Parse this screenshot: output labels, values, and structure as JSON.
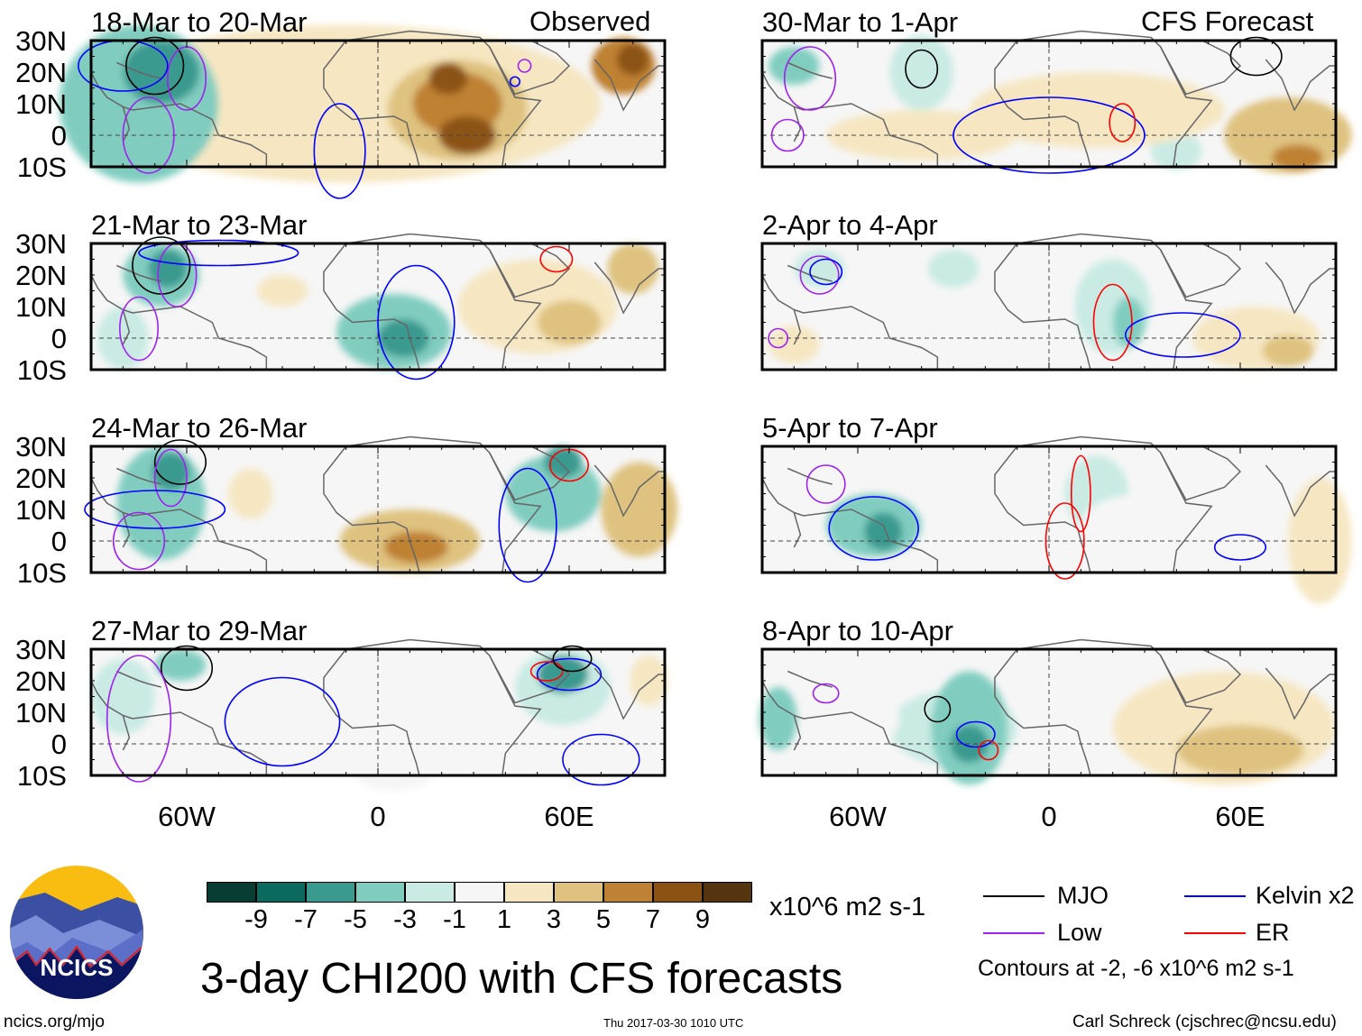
{
  "colors": [
    "#073d33",
    "#0b6a5d",
    "#3a9a90",
    "#80cdc0",
    "#c9ebe4",
    "#f6f6f6",
    "#f6e7c2",
    "#dfc27f",
    "#bf8133",
    "#8c5213",
    "#553410"
  ],
  "levels": [
    -9,
    -7,
    -5,
    -3,
    -1,
    1,
    3,
    5,
    7,
    9
  ],
  "contour_colors": {
    "MJO": "#000000",
    "Kelvin": "#0000ff",
    "Low": "#a020f0",
    "ER": "#ff0000"
  },
  "header": {
    "observed": "Observed",
    "forecast": "CFS Forecast"
  },
  "lat_labels": [
    "30N",
    "20N",
    "10N",
    "0",
    "10S"
  ],
  "lon_labels": [
    "60W",
    "0",
    "60E"
  ],
  "panels": [
    {
      "title": "18-Mar to 20-Mar",
      "shading": [
        [
          -10,
          10,
          80,
          25,
          3
        ],
        [
          -75,
          10,
          25,
          25,
          -3
        ],
        [
          -68,
          20,
          12,
          10,
          -5
        ],
        [
          25,
          8,
          22,
          16,
          5
        ],
        [
          25,
          10,
          14,
          10,
          7
        ],
        [
          28,
          0,
          9,
          6,
          9
        ],
        [
          22,
          18,
          6,
          5,
          9
        ],
        [
          77,
          22,
          10,
          9,
          7
        ],
        [
          80,
          24,
          5,
          5,
          9
        ],
        [
          -55,
          15,
          8,
          6,
          1
        ]
      ],
      "contours": [
        [
          "MJO",
          -70,
          22,
          9,
          9
        ],
        [
          "Low",
          -60,
          18,
          6,
          10
        ],
        [
          "Low",
          -72,
          0,
          8,
          12
        ],
        [
          "Kelvin",
          -12,
          -5,
          8,
          15
        ],
        [
          "Kelvin",
          -80,
          22,
          14,
          8
        ],
        [
          "Low",
          46,
          22,
          2,
          2
        ],
        [
          "Kelvin",
          43,
          17,
          1.5,
          1.5
        ]
      ]
    },
    {
      "title": "21-Mar to 23-Mar",
      "shading": [
        [
          -68,
          20,
          12,
          10,
          -3
        ],
        [
          -66,
          22,
          6,
          6,
          -5
        ],
        [
          5,
          2,
          18,
          12,
          -3
        ],
        [
          8,
          0,
          8,
          6,
          -5
        ],
        [
          50,
          10,
          25,
          15,
          3
        ],
        [
          60,
          5,
          10,
          7,
          5
        ],
        [
          -30,
          15,
          8,
          5,
          3
        ],
        [
          80,
          22,
          8,
          8,
          5
        ],
        [
          -80,
          0,
          8,
          10,
          -1
        ]
      ],
      "contours": [
        [
          "MJO",
          -68,
          23,
          9,
          9
        ],
        [
          "Low",
          -63,
          20,
          6,
          10
        ],
        [
          "Low",
          -75,
          3,
          6,
          10
        ],
        [
          "Kelvin",
          12,
          5,
          12,
          18
        ],
        [
          "Kelvin",
          -50,
          27,
          25,
          4
        ],
        [
          "ER",
          56,
          25,
          5,
          4
        ]
      ]
    },
    {
      "title": "24-Mar to 26-Mar",
      "shading": [
        [
          -68,
          12,
          14,
          18,
          -3
        ],
        [
          -65,
          22,
          6,
          6,
          -5
        ],
        [
          10,
          0,
          22,
          10,
          5
        ],
        [
          12,
          -2,
          10,
          5,
          7
        ],
        [
          55,
          15,
          15,
          12,
          -3
        ],
        [
          58,
          25,
          6,
          5,
          -5
        ],
        [
          82,
          10,
          12,
          15,
          5
        ],
        [
          -40,
          15,
          7,
          8,
          3
        ]
      ],
      "contours": [
        [
          "MJO",
          -62,
          25,
          8,
          7
        ],
        [
          "Low",
          -65,
          20,
          5,
          9
        ],
        [
          "Low",
          -75,
          0,
          8,
          9
        ],
        [
          "Kelvin",
          -70,
          10,
          22,
          6
        ],
        [
          "Kelvin",
          47,
          5,
          9,
          18
        ],
        [
          "ER",
          60,
          24,
          6,
          5
        ]
      ]
    },
    {
      "title": "27-Mar to 29-Mar",
      "shading": [
        [
          -62,
          25,
          8,
          5,
          -3
        ],
        [
          58,
          18,
          15,
          12,
          -1
        ],
        [
          58,
          22,
          8,
          6,
          -5
        ],
        [
          5,
          -5,
          15,
          10,
          1
        ],
        [
          85,
          20,
          6,
          8,
          3
        ],
        [
          -80,
          15,
          10,
          12,
          -1
        ]
      ],
      "contours": [
        [
          "MJO",
          -60,
          24,
          8,
          7
        ],
        [
          "Low",
          -75,
          8,
          10,
          20
        ],
        [
          "Kelvin",
          -30,
          7,
          18,
          14
        ],
        [
          "Kelvin",
          60,
          22,
          10,
          5
        ],
        [
          "ER",
          53,
          23,
          5,
          3
        ],
        [
          "Kelvin",
          70,
          -5,
          12,
          8
        ],
        [
          "MJO",
          61,
          27,
          6,
          4
        ]
      ]
    },
    {
      "title": "30-Mar to 1-Apr",
      "shading": [
        [
          -40,
          20,
          10,
          12,
          -1
        ],
        [
          15,
          8,
          40,
          12,
          3
        ],
        [
          -40,
          0,
          30,
          8,
          3
        ],
        [
          75,
          0,
          20,
          12,
          5
        ],
        [
          78,
          -7,
          8,
          4,
          7
        ],
        [
          -80,
          22,
          8,
          6,
          -3
        ],
        [
          40,
          -5,
          8,
          6,
          -1
        ]
      ],
      "contours": [
        [
          "MJO",
          -40,
          21,
          5,
          6
        ],
        [
          "Low",
          -75,
          18,
          8,
          10
        ],
        [
          "Low",
          -82,
          0,
          5,
          5
        ],
        [
          "Kelvin",
          0,
          0,
          30,
          12
        ],
        [
          "ER",
          23,
          4,
          4,
          6
        ],
        [
          "MJO",
          65,
          25,
          8,
          6
        ]
      ]
    },
    {
      "title": "2-Apr to 4-Apr",
      "shading": [
        [
          20,
          10,
          12,
          15,
          -1
        ],
        [
          25,
          5,
          5,
          8,
          -3
        ],
        [
          -72,
          22,
          8,
          6,
          -1
        ],
        [
          65,
          0,
          20,
          10,
          3
        ],
        [
          75,
          -4,
          8,
          5,
          5
        ],
        [
          -30,
          22,
          8,
          6,
          -1
        ],
        [
          -80,
          -2,
          8,
          6,
          3
        ]
      ],
      "contours": [
        [
          "Low",
          -72,
          20,
          6,
          6
        ],
        [
          "Kelvin",
          -70,
          21,
          5,
          4
        ],
        [
          "Low",
          -85,
          0,
          3,
          3
        ],
        [
          "ER",
          20,
          5,
          6,
          12
        ],
        [
          "Kelvin",
          42,
          1,
          18,
          7
        ]
      ]
    },
    {
      "title": "5-Apr to 7-Apr",
      "shading": [
        [
          -55,
          5,
          15,
          10,
          -3
        ],
        [
          -52,
          3,
          6,
          6,
          -5
        ],
        [
          15,
          15,
          10,
          12,
          -1
        ],
        [
          30,
          5,
          20,
          10,
          1
        ],
        [
          85,
          0,
          10,
          20,
          3
        ],
        [
          -80,
          15,
          8,
          10,
          1
        ]
      ],
      "contours": [
        [
          "Low",
          -70,
          18,
          6,
          6
        ],
        [
          "Kelvin",
          -55,
          4,
          14,
          10
        ],
        [
          "ER",
          5,
          0,
          6,
          12
        ],
        [
          "ER",
          10,
          15,
          3,
          12
        ],
        [
          "Kelvin",
          60,
          -2,
          8,
          4
        ]
      ]
    },
    {
      "title": "8-Apr to 10-Apr",
      "shading": [
        [
          -25,
          5,
          12,
          18,
          -3
        ],
        [
          -25,
          0,
          6,
          6,
          -5
        ],
        [
          -85,
          8,
          6,
          10,
          -3
        ],
        [
          55,
          5,
          35,
          18,
          3
        ],
        [
          60,
          -2,
          20,
          8,
          5
        ],
        [
          -30,
          5,
          20,
          12,
          -1
        ],
        [
          -55,
          8,
          8,
          8,
          1
        ],
        [
          25,
          0,
          10,
          8,
          1
        ]
      ],
      "contours": [
        [
          "MJO",
          -35,
          11,
          4,
          4
        ],
        [
          "Low",
          -70,
          16,
          4,
          3
        ],
        [
          "Kelvin",
          -23,
          3,
          6,
          4
        ],
        [
          "ER",
          -19,
          -2,
          3,
          3
        ]
      ]
    }
  ],
  "colorbar": {
    "unit": "x10^6 m2 s-1"
  },
  "legend": {
    "items": [
      {
        "key": "MJO",
        "label": "MJO"
      },
      {
        "key": "Kelvin",
        "label": "Kelvin x2"
      },
      {
        "key": "Low",
        "label": "Low"
      },
      {
        "key": "ER",
        "label": "ER"
      }
    ],
    "note": "Contours at -2, -6 x10^6 m2 s-1"
  },
  "title": "3-day CHI200 with CFS forecasts",
  "logo": {
    "text": "NCICS"
  },
  "footer": {
    "url": "ncics.org/mjo",
    "timestamp": "Thu 2017-03-30 1010 UTC",
    "author": "Carl Schreck (cjschrec@ncsu.edu)"
  }
}
